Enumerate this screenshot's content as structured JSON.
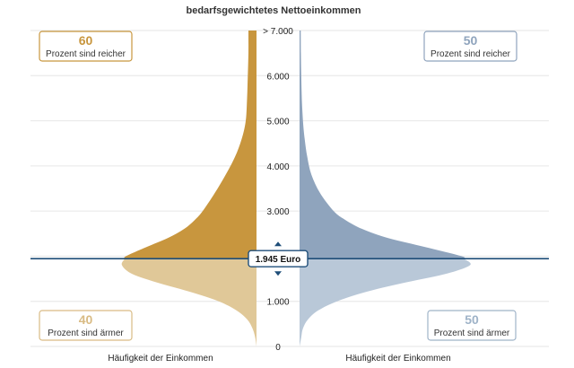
{
  "chart_data": {
    "type": "area",
    "title": "bedarfsgewichtetes Nettoeinkommen",
    "y_ticks": [
      "0",
      "1.000",
      "2.000",
      "3.000",
      "4.000",
      "5.000",
      "6.000",
      "> 7.000"
    ],
    "ylim": [
      0,
      7000
    ],
    "grid": true,
    "median": {
      "value": 1945,
      "label": "1.945 Euro"
    },
    "xlabel_left": "Häufigkeit der Einkommen",
    "xlabel_right": "Häufigkeit der Einkommen",
    "colors": {
      "left_above": "#c8963e",
      "left_below": "#e0c898",
      "right_above": "#8fa4bd",
      "right_below": "#b9c8d8",
      "median_line": "#1f4e79"
    },
    "series": [
      {
        "side": "left",
        "income": [
          0,
          200,
          400,
          600,
          800,
          1000,
          1200,
          1400,
          1600,
          1800,
          2000,
          2200,
          2400,
          2600,
          2800,
          3000,
          3400,
          3800,
          4200,
          4600,
          5000,
          5500,
          6000,
          6500,
          7000
        ],
        "density": [
          0.0,
          0.01,
          0.03,
          0.07,
          0.15,
          0.28,
          0.48,
          0.72,
          0.92,
          1.0,
          0.97,
          0.82,
          0.66,
          0.54,
          0.46,
          0.4,
          0.31,
          0.23,
          0.16,
          0.11,
          0.08,
          0.07,
          0.065,
          0.06,
          0.06
        ],
        "above_box": {
          "value": "60",
          "text": "Prozent sind reicher"
        },
        "below_box": {
          "value": "40",
          "text": "Prozent sind ärmer"
        }
      },
      {
        "side": "right",
        "income": [
          0,
          200,
          400,
          600,
          800,
          1000,
          1200,
          1400,
          1600,
          1800,
          2000,
          2200,
          2400,
          2600,
          2800,
          3000,
          3400,
          3800,
          4200,
          4600,
          5000,
          5500,
          6000,
          6500,
          7000
        ],
        "density": [
          0.0,
          0.01,
          0.02,
          0.05,
          0.11,
          0.22,
          0.38,
          0.6,
          0.85,
          1.0,
          0.95,
          0.74,
          0.52,
          0.37,
          0.27,
          0.2,
          0.12,
          0.07,
          0.045,
          0.03,
          0.02,
          0.013,
          0.01,
          0.008,
          0.007
        ],
        "above_box": {
          "value": "50",
          "text": "Prozent sind reicher"
        },
        "below_box": {
          "value": "50",
          "text": "Prozent sind ärmer"
        }
      }
    ]
  }
}
